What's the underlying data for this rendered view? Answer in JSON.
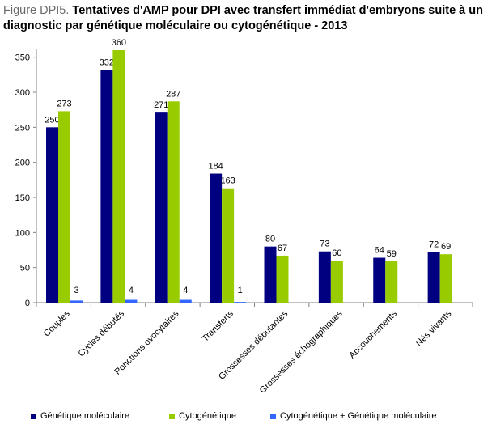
{
  "title": {
    "prefix": "Figure DPI5.",
    "main": " Tentatives d'AMP pour DPI avec transfert immédiat d'embryons suite à un diagnostic par génétique moléculaire ou cytogénétique - 2013"
  },
  "colors": {
    "series": [
      "#000080",
      "#99cc00",
      "#3366ff"
    ],
    "axis": "#808080"
  },
  "chart_data": {
    "type": "bar",
    "categories": [
      "Couples",
      "Cycles débutés",
      "Ponctions ovocytaires",
      "Transferts",
      "Grossesses débutantes",
      "Grossesses échographiques",
      "Accouchements",
      "Nés vivants"
    ],
    "series": [
      {
        "name": "Génétique moléculaire",
        "values": [
          250,
          332,
          271,
          184,
          80,
          73,
          64,
          72
        ],
        "labels": [
          "250",
          "332",
          "271",
          "184",
          "80",
          "73",
          "64",
          "72"
        ]
      },
      {
        "name": "Cytogénétique",
        "values": [
          273,
          360,
          287,
          163,
          67,
          60,
          59,
          69
        ],
        "labels": [
          "273",
          "360",
          "287",
          "163",
          "67",
          "60",
          "59",
          "69"
        ]
      },
      {
        "name": "Cytogénétique + Génétique moléculaire",
        "values": [
          3,
          4,
          4,
          1,
          null,
          null,
          null,
          null
        ],
        "labels": [
          "3",
          "4",
          "4",
          "1",
          "",
          "",
          "",
          ""
        ]
      }
    ],
    "yticks": [
      "0",
      "50",
      "100",
      "150",
      "200",
      "250",
      "300",
      "350"
    ],
    "ylim": [
      0,
      360
    ],
    "grid": false,
    "legend": "bottom"
  }
}
